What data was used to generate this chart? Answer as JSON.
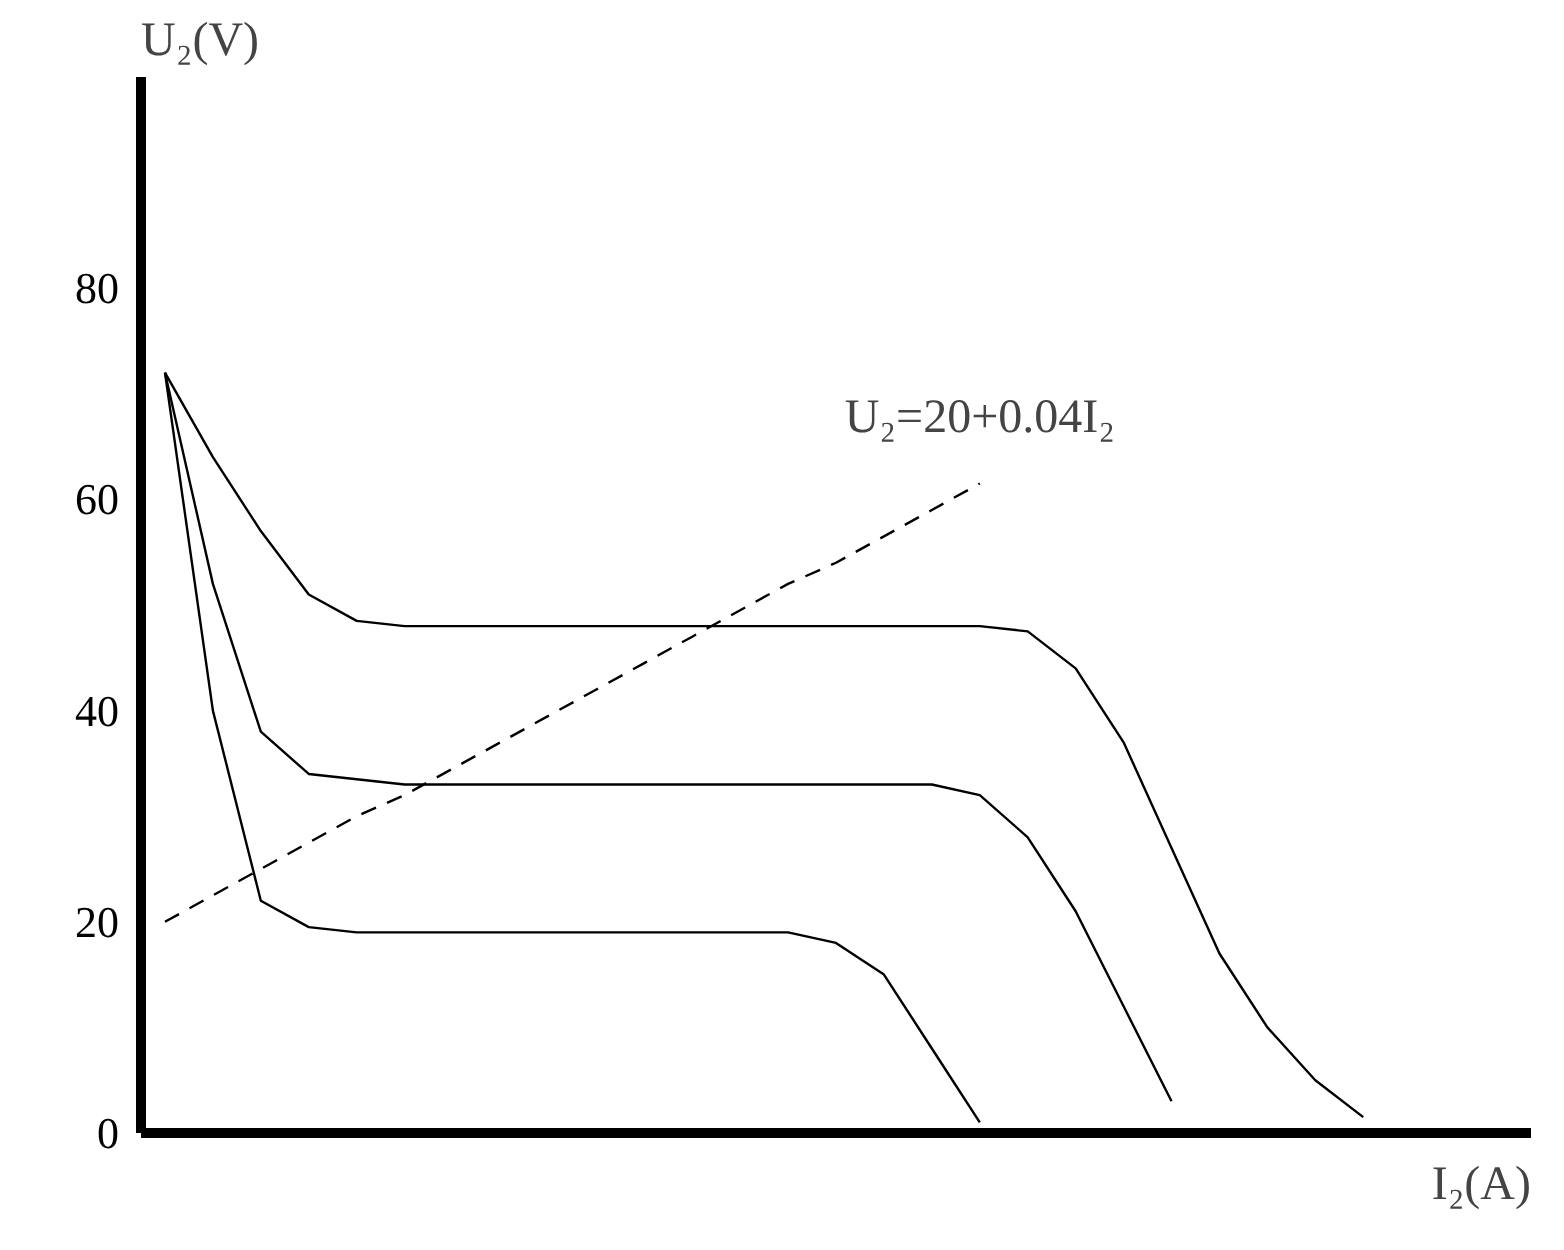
{
  "chart_data": {
    "type": "line",
    "xlabel": "I₂(A)",
    "ylabel": "U₂(V)",
    "categories": [
      null,
      null,
      null,
      null,
      null,
      null,
      null,
      null,
      null,
      null,
      null,
      null,
      null,
      null,
      null,
      null,
      null,
      null,
      null,
      null,
      null,
      null,
      null,
      null,
      null,
      null,
      null
    ],
    "series": [
      {
        "color": "#000000",
        "values": [
          72,
          64,
          57,
          51,
          48.5,
          48,
          48,
          48,
          48,
          48,
          48,
          48,
          48,
          48,
          48,
          48,
          48,
          48,
          47.5,
          44,
          37,
          27,
          17,
          10,
          5,
          1.5,
          null
        ]
      },
      {
        "color": "#000000",
        "values": [
          72,
          52,
          38,
          34,
          33.5,
          33,
          33,
          33,
          33,
          33,
          33,
          33,
          33,
          33,
          33,
          33,
          33,
          32,
          28,
          21,
          12,
          3,
          null,
          null,
          null,
          null,
          null
        ]
      },
      {
        "color": "#000000",
        "values": [
          72,
          40,
          22,
          19.5,
          19,
          19,
          19,
          19,
          19,
          19,
          19,
          19,
          19,
          19,
          18,
          15,
          8,
          1,
          null,
          null,
          null,
          null,
          null,
          null,
          null,
          null,
          null
        ]
      },
      {
        "color": "#000000",
        "line_style": "dashed",
        "values": [
          20,
          22.5,
          25,
          27.5,
          30,
          32,
          34.5,
          37,
          39.5,
          42,
          44.5,
          47,
          49.5,
          52,
          54,
          56.5,
          59,
          61.5,
          null,
          null,
          null,
          null,
          null,
          null,
          null,
          null,
          null
        ]
      }
    ],
    "annotations": [
      "U₂=20+0.04I₂"
    ],
    "ylim": [
      0,
      100
    ],
    "yticks": [
      0,
      20,
      40,
      60,
      80
    ],
    "tick_labels": "y",
    "grid": false,
    "marker": "none",
    "line_style": "solid"
  }
}
